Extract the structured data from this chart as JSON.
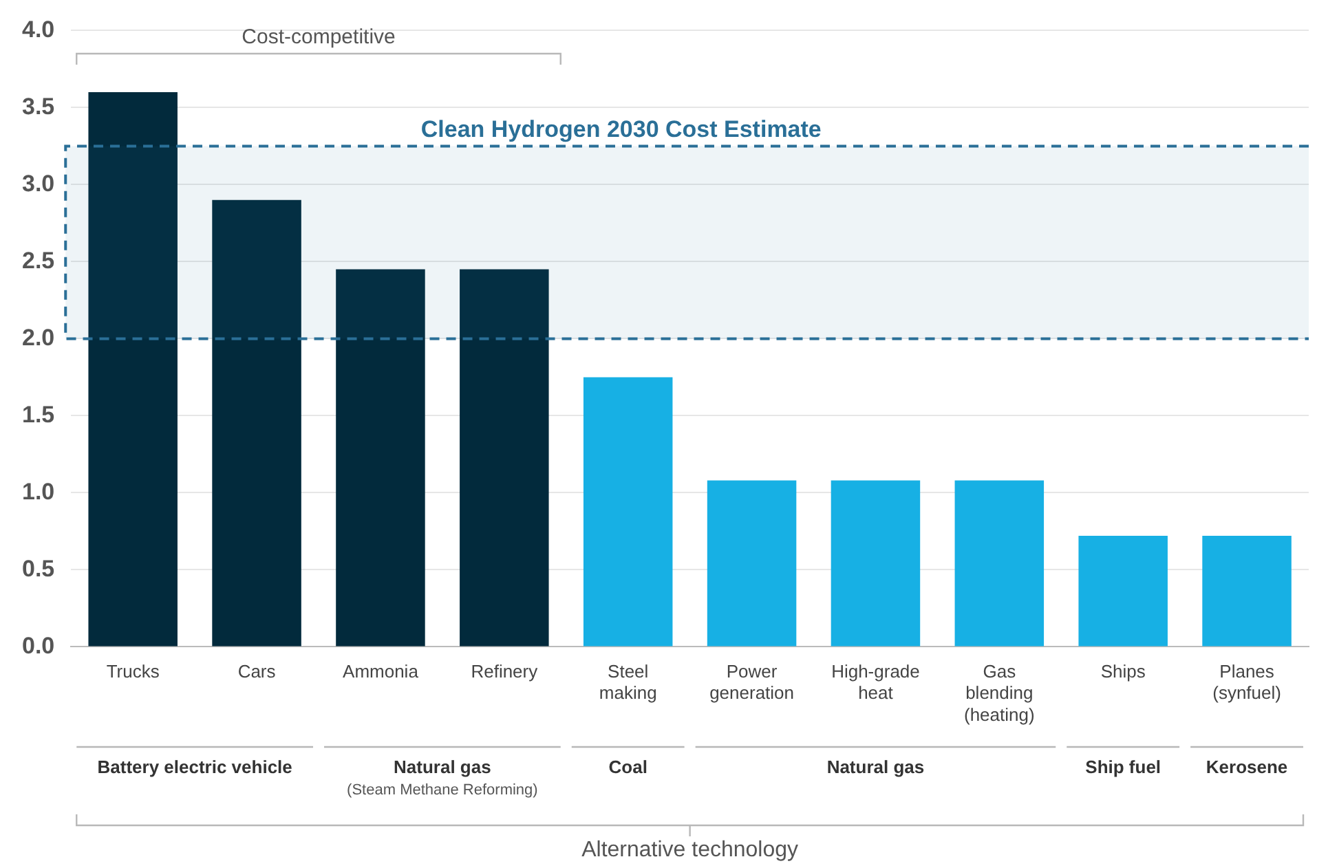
{
  "chart_data": {
    "type": "bar",
    "categories": [
      "Trucks",
      "Cars",
      "Ammonia",
      "Refinery",
      "Steel\nmaking",
      "Power\ngeneration",
      "High-grade\nheat",
      "Gas\nblending\n(heating)",
      "Ships",
      "Planes\n(synfuel)"
    ],
    "values": [
      3.6,
      2.9,
      2.45,
      2.45,
      1.75,
      1.08,
      1.08,
      1.08,
      0.72,
      0.72
    ],
    "colors": [
      "#022a3c",
      "#022a3c",
      "#022a3c",
      "#022a3c",
      "#17b0e4",
      "#17b0e4",
      "#17b0e4",
      "#17b0e4",
      "#17b0e4",
      "#17b0e4"
    ],
    "ylim": [
      0,
      4
    ],
    "yticks": [
      {
        "value": 0,
        "label": "0.0"
      },
      {
        "value": 0.5,
        "label": "0.5"
      },
      {
        "value": 1,
        "label": "1.0"
      },
      {
        "value": 1.5,
        "label": "1.5"
      },
      {
        "value": 2,
        "label": "2.0"
      },
      {
        "value": 2.5,
        "label": "2.5"
      },
      {
        "value": 3,
        "label": "3.0"
      },
      {
        "value": 3.5,
        "label": "3.5"
      },
      {
        "value": 4,
        "label": "4.0"
      }
    ],
    "grid": "y",
    "legend": false,
    "bands": [
      {
        "axis": "y",
        "from": 2.0,
        "to": 3.25,
        "label": "Clean Hydrogen 2030 Cost Estimate",
        "color": "#2a6f97"
      }
    ],
    "annotations": [
      "Cost-competitive",
      "Battery electric vehicle",
      "Natural gas\n(Steam Methane Reforming)",
      "Coal",
      "Natural gas",
      "Ship fuel",
      "Kerosene",
      "Alternative technology"
    ]
  }
}
